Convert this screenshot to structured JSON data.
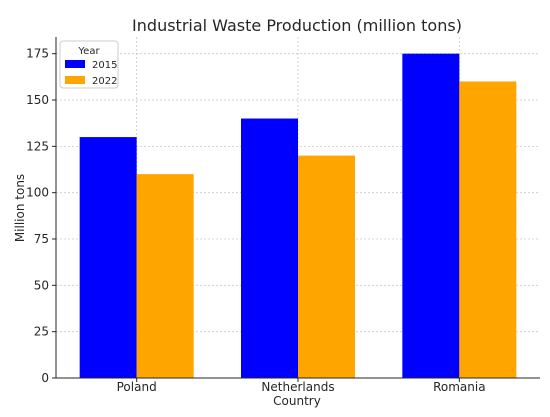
{
  "chart_data": {
    "type": "bar",
    "title": "Industrial Waste Production (million tons)",
    "xlabel": "Country",
    "ylabel": "Million tons",
    "categories": [
      "Poland",
      "Netherlands",
      "Romania"
    ],
    "series": [
      {
        "name": "2015",
        "color": "#0000FF",
        "values": [
          130,
          140,
          175
        ]
      },
      {
        "name": "2022",
        "color": "#FFA500",
        "values": [
          110,
          120,
          160
        ]
      }
    ],
    "ylim": [
      0,
      184
    ],
    "yticks": [
      0,
      25,
      50,
      75,
      100,
      125,
      150,
      175
    ],
    "grid": true,
    "legend": {
      "title": "Year",
      "placement": "top-left"
    }
  }
}
